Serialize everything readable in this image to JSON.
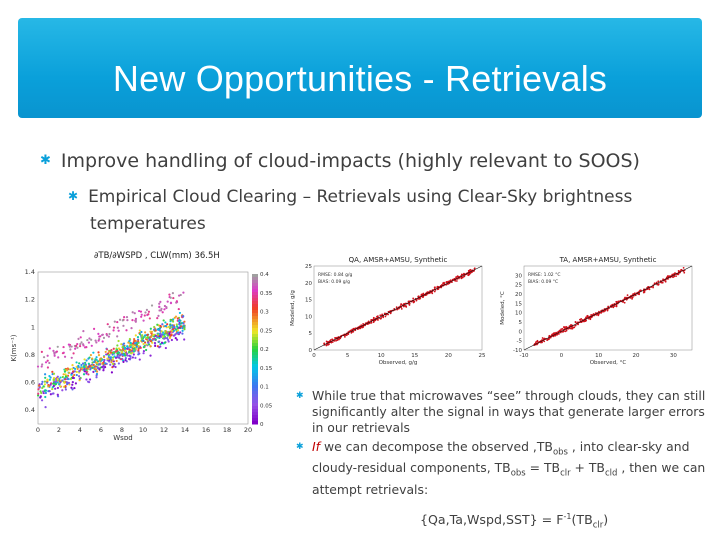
{
  "slide": {
    "title": "New Opportunities - Retrievals",
    "bullet1": "Improve handling of cloud-impacts (highly relevant to SOOS)",
    "bullet2": "Empirical Cloud Clearing – Retrievals using Clear-Sky brightness temperatures"
  },
  "notes": {
    "item1": "While true that microwaves “see” through clouds, they can still significantly alter the signal in ways that generate larger errors in our retrievals",
    "item2_if": "If",
    "item2_a": " we can decompose the observed ,TB",
    "item2_sub_obs": "obs",
    "item2_b": " , into clear-sky and cloudy-residual components, TB",
    "item2_sub_obs2": "obs",
    "item2_c": " = TB",
    "item2_sub_clr": "clr",
    "item2_d": " + TB",
    "item2_sub_cld": "cld",
    "item2_e": " , then we can attempt retrievals:",
    "formula_a": "{Qa,Ta,Wspd,SST} = F",
    "formula_sup": "-1",
    "formula_b": "(TB",
    "formula_sub": "clr",
    "formula_c": ")"
  },
  "chart_data": [
    {
      "type": "scatter",
      "title": "∂TB/∂WSPD , CLW(mm)   36.5H",
      "xlabel": "Wspd",
      "ylabel": "K(ms⁻¹)",
      "xlim": [
        0,
        20
      ],
      "ylim": [
        0.3,
        1.4
      ],
      "xticks": [
        "0",
        "2",
        "4",
        "6",
        "8",
        "10",
        "12",
        "14",
        "16",
        "18",
        "20"
      ],
      "yticks": [
        "1.4",
        "1.2",
        "1",
        "0.8",
        "0.6",
        "0.4"
      ],
      "colorbar_ticks": [
        "0.4",
        "0.35",
        "0.3",
        "0.25",
        "0.2",
        "0.15",
        "0.1",
        "0.05",
        "0"
      ],
      "colorbar_range": [
        0,
        0.4
      ]
    },
    {
      "type": "scatter",
      "title": "QA, AMSR+AMSU, Synthetic",
      "xlabel": "Observed, g/g",
      "ylabel": "Modeled, g/g",
      "annot1": "RMSE: 0.84 g/g",
      "annot2": "BIAS: 0.09 g/g",
      "xlim": [
        0,
        25
      ],
      "ylim": [
        0,
        25
      ],
      "xticks": [
        "0",
        "5",
        "10",
        "15",
        "20",
        "25"
      ],
      "yticks": [
        "25",
        "20",
        "15",
        "10",
        "5",
        "0"
      ]
    },
    {
      "type": "scatter",
      "title": "TA, AMSR+AMSU, Synthetic",
      "xlabel": "Observed, °C",
      "ylabel": "Modeled, °C",
      "annot1": "RMSE: 1.02 °C",
      "annot2": "BIAS: 0.09 °C",
      "xlim": [
        -10,
        35
      ],
      "ylim": [
        -10,
        35
      ],
      "xticks": [
        "-10",
        "0",
        "10",
        "20",
        "30"
      ],
      "yticks": [
        "30",
        "25",
        "20",
        "15",
        "10",
        "5",
        "0",
        "-5",
        "-10"
      ]
    }
  ]
}
